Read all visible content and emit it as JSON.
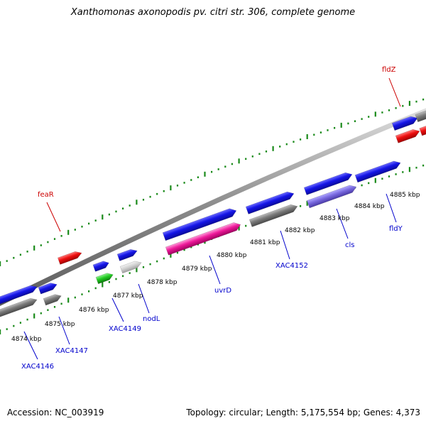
{
  "title": "Xanthomonas axonopodis pv. citri str. 306, complete genome",
  "footer": {
    "accession": "Accession: NC_003919",
    "summary": "Topology: circular; Length: 5,175,554 bp; Genes: 4,373"
  },
  "colors": {
    "forward_cds": "#1010e0",
    "reverse_cds": "#e01010",
    "backbone": "#9a9a9a",
    "gc_skew_ticks": "#1a8a1a",
    "label_forward": "#0000cc",
    "label_reverse": "#cc0000"
  },
  "kbp_ticks": [
    "4874 kbp",
    "4875 kbp",
    "4876 kbp",
    "4877 kbp",
    "4878 kbp",
    "4879 kbp",
    "4880 kbp",
    "4881 kbp",
    "4882 kbp",
    "4883 kbp",
    "4884 kbp",
    "4885 kbp"
  ],
  "gene_labels": {
    "feaR": "feaR",
    "fldZ": "fldZ",
    "XAC4146": "XAC4146",
    "XAC4147": "XAC4147",
    "XAC4149": "XAC4149",
    "nodL": "nodL",
    "uvrD": "uvrD",
    "XAC4152": "XAC4152",
    "cls": "cls",
    "fldY": "fldY"
  }
}
